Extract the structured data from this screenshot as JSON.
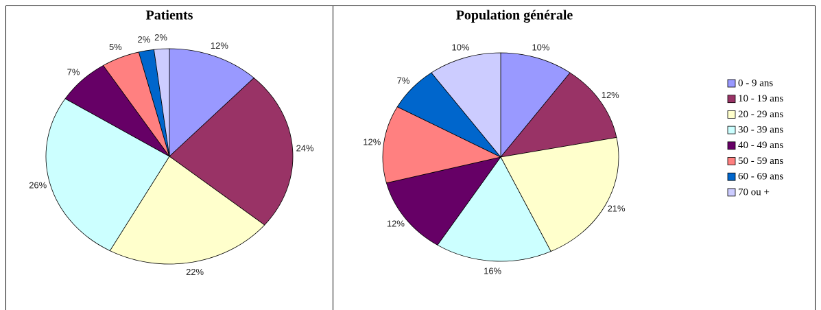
{
  "chart_data": [
    {
      "type": "pie",
      "title": "Patients",
      "values": [
        12,
        24,
        22,
        26,
        7,
        5,
        2,
        2
      ],
      "value_labels": [
        "12%",
        "24%",
        "22%",
        "26%",
        "7%",
        "5%",
        "2%",
        "2%"
      ],
      "colors": [
        "#9999ff",
        "#993366",
        "#ffffcc",
        "#ccffff",
        "#660066",
        "#ff8080",
        "#0066cc",
        "#ccccff"
      ]
    },
    {
      "type": "pie",
      "title": "Population générale",
      "categories": [
        "0 - 9 ans",
        "10 - 19 ans",
        "20 - 29 ans",
        "30 - 39 ans",
        "40 - 49 ans",
        "50 - 59 ans",
        "60 - 69 ans",
        "70 ou +"
      ],
      "values": [
        10,
        12,
        21,
        16,
        12,
        12,
        7,
        10
      ],
      "value_labels": [
        "10%",
        "12%",
        "21%",
        "16%",
        "12%",
        "12%",
        "7%",
        "10%"
      ],
      "colors": [
        "#9999ff",
        "#993366",
        "#ffffcc",
        "#ccffff",
        "#660066",
        "#ff8080",
        "#0066cc",
        "#ccccff"
      ],
      "legend": "right"
    }
  ]
}
